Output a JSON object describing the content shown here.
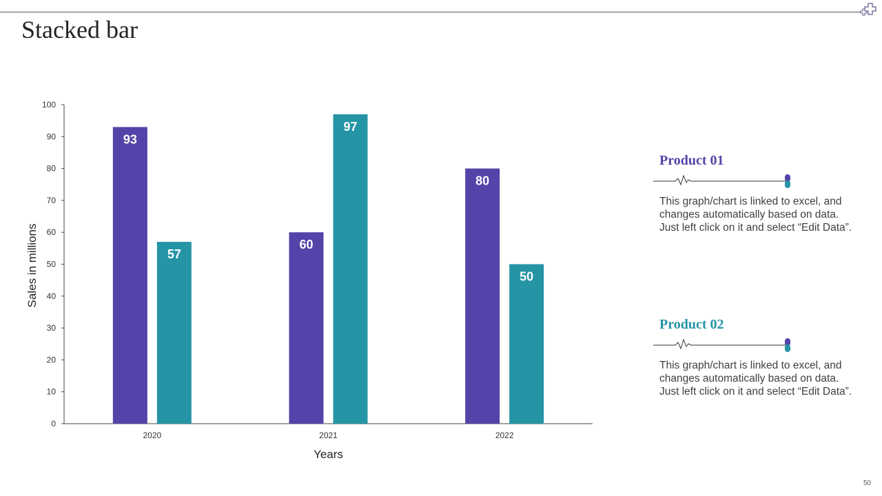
{
  "slide": {
    "title": "Stacked bar",
    "page_number": "50"
  },
  "colors": {
    "product_01": "#5244a9",
    "product_02": "#2594a5"
  },
  "legend": [
    {
      "title": "Product 01",
      "description": "This graph/chart is linked to excel, and changes automatically based on data. Just left click on it and select “Edit Data”."
    },
    {
      "title": "Product 02",
      "description": "This graph/chart is linked to excel, and changes automatically based on data. Just left click on it and select “Edit Data”."
    }
  ],
  "chart_data": {
    "type": "bar",
    "title": "",
    "xlabel": "Years",
    "ylabel": "Sales in millions",
    "categories": [
      "2020",
      "2021",
      "2022"
    ],
    "series": [
      {
        "name": "Product 01",
        "values": [
          93,
          60,
          80
        ]
      },
      {
        "name": "Product 02",
        "values": [
          57,
          97,
          50
        ]
      }
    ],
    "ylim": [
      0,
      100
    ],
    "yticks": [
      0,
      10,
      20,
      30,
      40,
      50,
      60,
      70,
      80,
      90,
      100
    ],
    "grid": false,
    "data_labels": true
  }
}
